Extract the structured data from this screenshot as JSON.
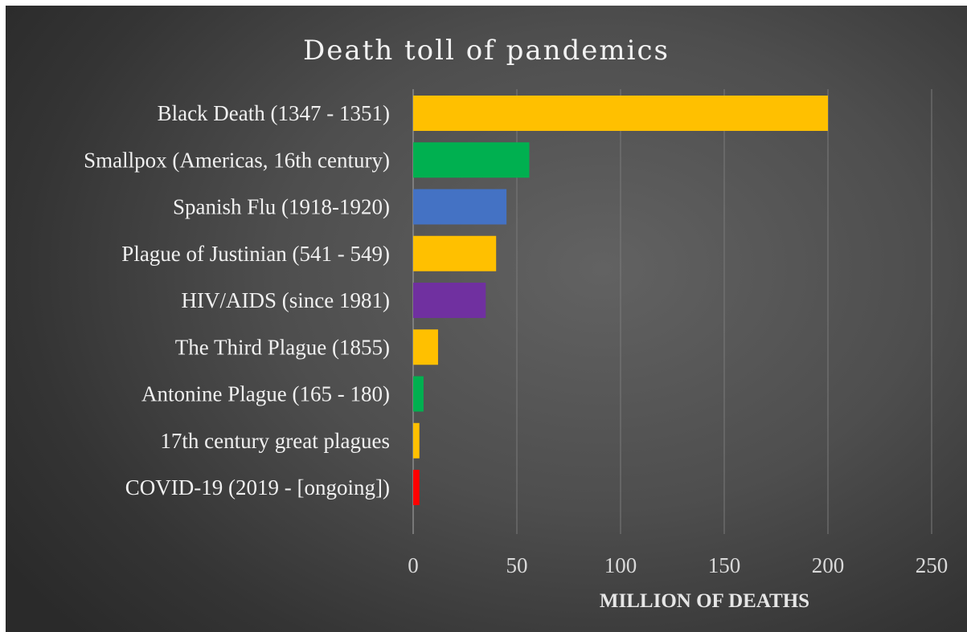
{
  "chart_data": {
    "type": "bar",
    "orientation": "horizontal",
    "title": "Death toll of pandemics",
    "xlabel": "MILLION OF DEATHS",
    "ylabel": "",
    "xlim": [
      0,
      250
    ],
    "xticks": [
      0,
      50,
      100,
      150,
      200,
      250
    ],
    "grid": "vertical",
    "legend": "none",
    "categories": [
      "Black Death (1347 - 1351)",
      "Smallpox (Americas, 16th century)",
      "Spanish Flu (1918-1920)",
      "Plague of Justinian (541 - 549)",
      "HIV/AIDS (since 1981)",
      "The Third Plague (1855)",
      "Antonine Plague (165 - 180)",
      "17th century great plagues",
      "COVID-19 (2019 - [ongoing])"
    ],
    "values": [
      200,
      56,
      45,
      40,
      35,
      12,
      5,
      3,
      3
    ],
    "colors": [
      "#ffc000",
      "#00b050",
      "#4472c4",
      "#ffc000",
      "#7030a0",
      "#ffc000",
      "#00b050",
      "#ffc000",
      "#ff0000"
    ]
  }
}
